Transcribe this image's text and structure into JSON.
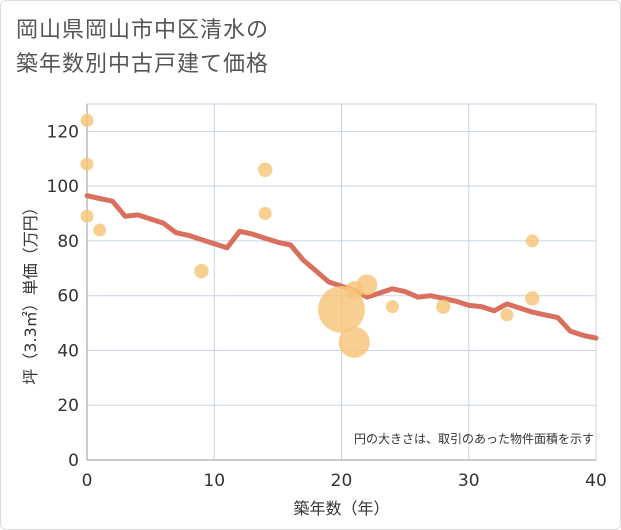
{
  "title_lines": [
    "岡山県岡山市中区清水の",
    "築年数別中古戸建て価格"
  ],
  "chart_data": {
    "type": "scatter",
    "xlabel": "築年数（年）",
    "ylabel": "坪（3.3㎡）単価（万円）",
    "xlim": [
      0,
      40
    ],
    "ylim": [
      0,
      130
    ],
    "xticks": [
      0,
      10,
      20,
      30,
      40
    ],
    "yticks": [
      0,
      20,
      40,
      60,
      80,
      100,
      120
    ],
    "grid": true,
    "note": "円の大きさは、取引のあった物件面積を示す",
    "colors": {
      "trend": "#d9705e",
      "bubble": "#f5c478",
      "grid": "#c8d4e2"
    },
    "trend_line": {
      "x": [
        0,
        1,
        2,
        3,
        4,
        5,
        6,
        7,
        8,
        9,
        10,
        11,
        12,
        13,
        14,
        15,
        16,
        17,
        18,
        19,
        20,
        21,
        22,
        23,
        24,
        25,
        26,
        27,
        28,
        29,
        30,
        31,
        32,
        33,
        34,
        35,
        36,
        37,
        38,
        39,
        40
      ],
      "y": [
        96.5,
        95.5,
        94.5,
        89,
        89.5,
        88,
        86.5,
        83,
        82,
        80.5,
        79,
        77.5,
        83.5,
        82.5,
        81,
        79.5,
        78.5,
        73,
        69,
        65,
        63.5,
        62,
        59.5,
        61,
        62.5,
        61.5,
        59.5,
        60,
        59,
        58,
        56.5,
        56,
        54.5,
        57,
        55.5,
        54,
        53,
        52,
        47,
        45.5,
        44.5
      ]
    },
    "points": [
      {
        "x": 0,
        "y": 124,
        "size": 1
      },
      {
        "x": 0,
        "y": 108,
        "size": 1
      },
      {
        "x": 0,
        "y": 89,
        "size": 1
      },
      {
        "x": 1,
        "y": 84,
        "size": 1
      },
      {
        "x": 9,
        "y": 69,
        "size": 1.1
      },
      {
        "x": 14,
        "y": 106,
        "size": 1.1
      },
      {
        "x": 14,
        "y": 90,
        "size": 1
      },
      {
        "x": 20,
        "y": 55,
        "size": 3.6
      },
      {
        "x": 21,
        "y": 62,
        "size": 1.4
      },
      {
        "x": 21,
        "y": 43,
        "size": 2.4
      },
      {
        "x": 22,
        "y": 64,
        "size": 1.6
      },
      {
        "x": 24,
        "y": 56,
        "size": 1
      },
      {
        "x": 28,
        "y": 56,
        "size": 1.1
      },
      {
        "x": 33,
        "y": 53,
        "size": 1
      },
      {
        "x": 35,
        "y": 80,
        "size": 1
      },
      {
        "x": 35,
        "y": 59,
        "size": 1.1
      }
    ]
  }
}
